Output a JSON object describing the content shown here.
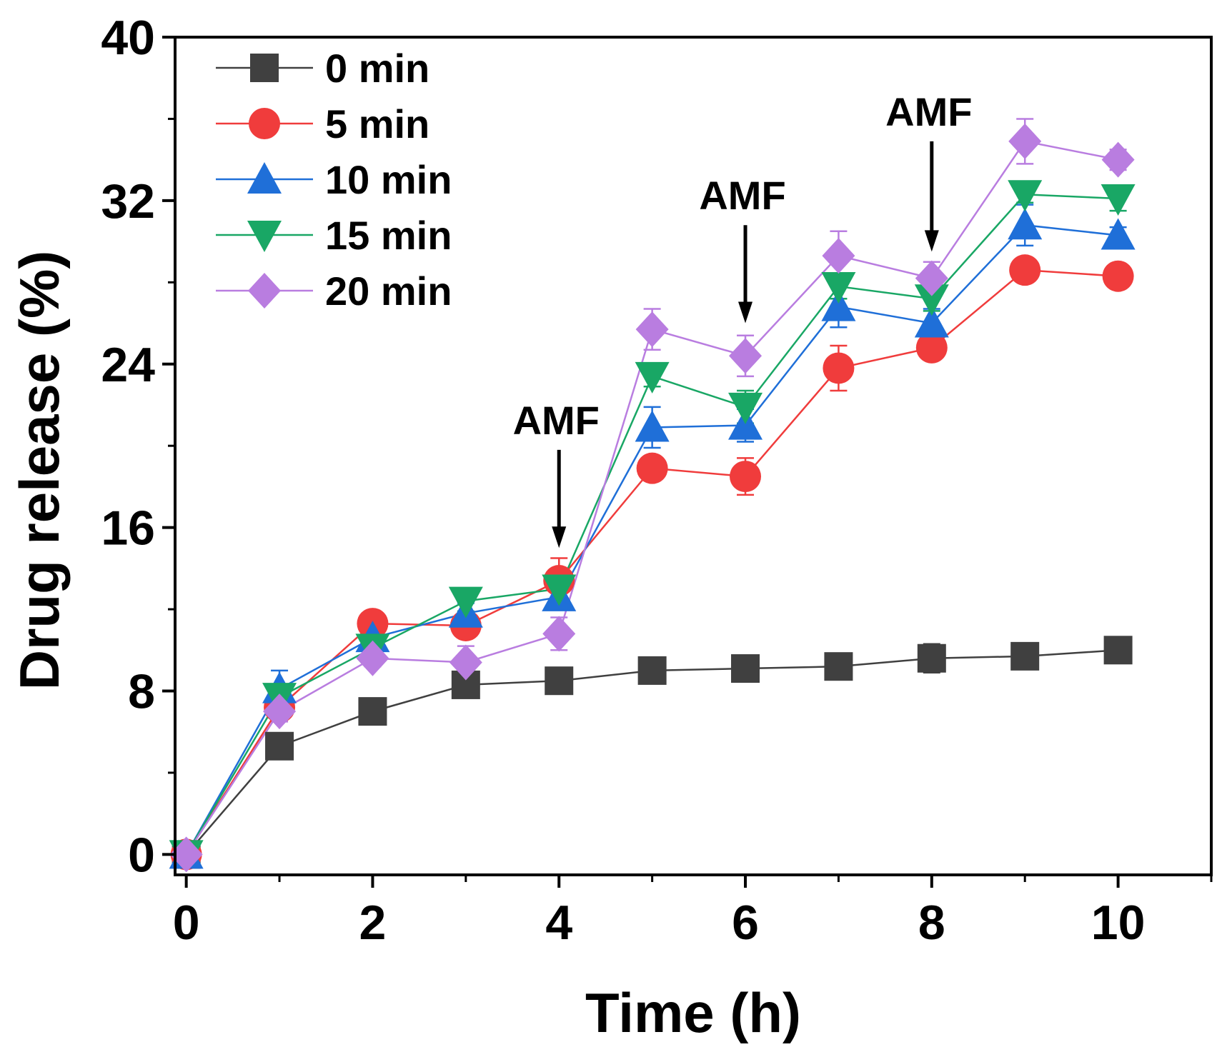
{
  "chart_data": {
    "type": "line",
    "title": "",
    "xlabel": "Time (h)",
    "ylabel": "Drug release (%)",
    "xlim": [
      -0.12,
      11.0
    ],
    "ylim": [
      -1.0,
      40
    ],
    "xticks": [
      0,
      2,
      4,
      6,
      8,
      10
    ],
    "yticks": [
      0,
      8,
      16,
      24,
      32,
      40
    ],
    "grid": false,
    "legend_position": "top-left",
    "x": [
      0,
      1,
      2,
      3,
      4,
      5,
      6,
      7,
      8,
      9,
      10
    ],
    "series": [
      {
        "name": "0 min",
        "color": "#404040",
        "marker": "square",
        "values": [
          0,
          5.3,
          7.0,
          8.3,
          8.5,
          9.0,
          9.1,
          9.2,
          9.6,
          9.7,
          10.0
        ],
        "errors": [
          0.3,
          0.6,
          0.3,
          0.3,
          0.3,
          0.3,
          0.6,
          0.3,
          0.7,
          0.3,
          0.3
        ]
      },
      {
        "name": "5 min",
        "color": "#f03c3c",
        "marker": "circle",
        "values": [
          0,
          7.2,
          11.3,
          11.2,
          13.4,
          18.9,
          18.5,
          23.8,
          24.8,
          28.6,
          28.3
        ],
        "errors": [
          0.3,
          0.5,
          0.4,
          0.6,
          1.1,
          0.5,
          0.9,
          1.1,
          0.6,
          0.3,
          0.3
        ]
      },
      {
        "name": "10 min",
        "color": "#1f6fd8",
        "marker": "triangle-up",
        "values": [
          0,
          8.1,
          10.6,
          11.8,
          12.6,
          20.9,
          21.0,
          26.8,
          26.0,
          30.8,
          30.3
        ],
        "errors": [
          0.3,
          0.9,
          0.6,
          0.5,
          0.6,
          1.0,
          0.8,
          1.0,
          0.7,
          1.0,
          0.4
        ]
      },
      {
        "name": "15 min",
        "color": "#19a765",
        "marker": "triangle-down",
        "values": [
          0,
          7.7,
          10.1,
          12.4,
          13.0,
          23.4,
          21.9,
          27.8,
          27.2,
          32.3,
          32.1
        ],
        "errors": [
          0.3,
          0.6,
          0.8,
          0.5,
          0.6,
          0.5,
          0.8,
          0.6,
          0.6,
          0.4,
          0.6
        ]
      },
      {
        "name": "20 min",
        "color": "#b97de0",
        "marker": "diamond",
        "values": [
          0,
          7.0,
          9.6,
          9.4,
          10.8,
          25.7,
          24.4,
          29.3,
          28.2,
          34.9,
          34.0
        ],
        "errors": [
          0.3,
          0.5,
          0.4,
          0.8,
          0.8,
          1.0,
          1.0,
          1.2,
          0.8,
          1.1,
          0.5
        ]
      }
    ],
    "annotations": [
      {
        "text": "AMF",
        "x": 4,
        "arrow_from_y": 19.8,
        "arrow_to_y": 15.0
      },
      {
        "text": "AMF",
        "x": 6,
        "arrow_from_y": 30.8,
        "arrow_to_y": 26.0
      },
      {
        "text": "AMF",
        "x": 8,
        "arrow_from_y": 34.9,
        "arrow_to_y": 29.5
      }
    ]
  }
}
